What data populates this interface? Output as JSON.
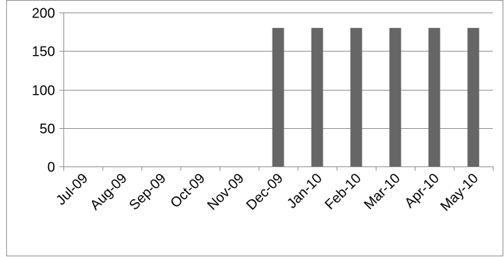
{
  "chart_data": {
    "type": "bar",
    "title": "",
    "xlabel": "",
    "ylabel": "",
    "categories": [
      "Jul-09",
      "Aug-09",
      "Sep-09",
      "Oct-09",
      "Nov-09",
      "Dec-09",
      "Jan-10",
      "Feb-10",
      "Mar-10",
      "Apr-10",
      "May-10"
    ],
    "series": [
      {
        "values": [
          0,
          0,
          0,
          0,
          0,
          180,
          180,
          180,
          180,
          180,
          180
        ],
        "color": "#666666"
      }
    ],
    "ylim": [
      0,
      200
    ],
    "yticks": [
      "0",
      "50",
      "100",
      "150",
      "200"
    ],
    "grid": "horizontal",
    "legend": "none"
  }
}
